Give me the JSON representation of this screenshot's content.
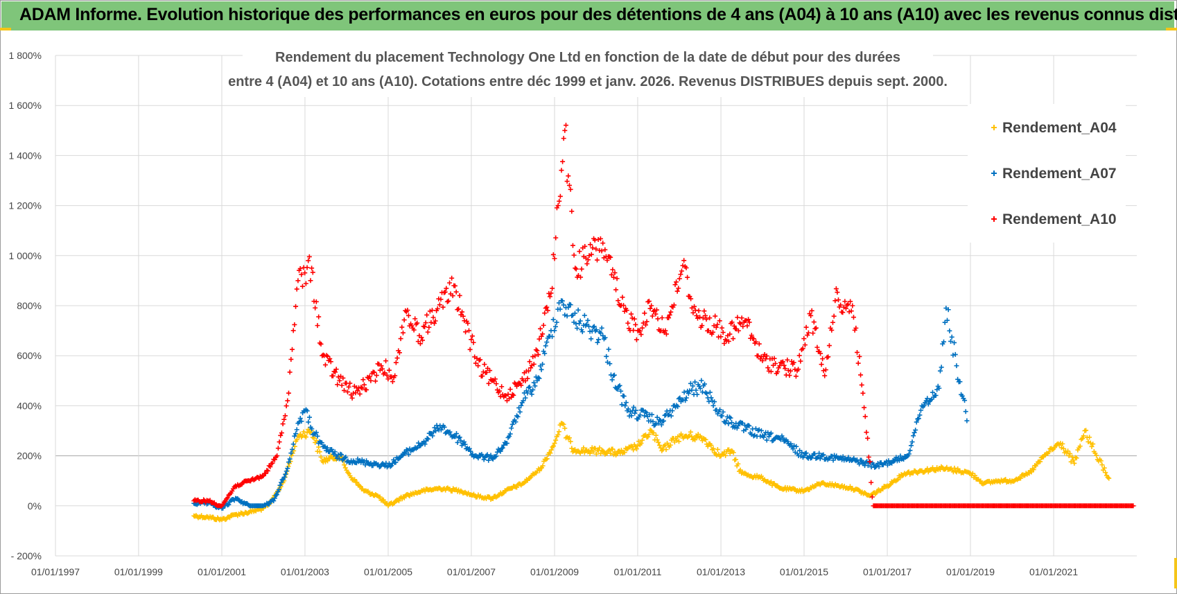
{
  "header": {
    "title": "ADAM Informe. Evolution historique des performances en euros pour des détentions de 4 ans (A04) à 10 ans (A10) avec les revenus connus distribués"
  },
  "colors": {
    "banner": "#7fc57a",
    "corner_accent": "#f5c518",
    "A04": "#ffc000",
    "A07": "#0070c0",
    "A10": "#ff0000",
    "gridline": "#d9d9d9"
  },
  "chart_data": {
    "type": "scatter",
    "title_line1": "Rendement du placement Technology One Ltd en fonction de la date de début pour des durées",
    "title_line2": "entre 4 (A04) et 10 ans (A10).  Cotations entre déc 1999 et janv. 2026.  Revenus DISTRIBUES depuis sept. 2000.",
    "xlabel": "",
    "ylabel": "",
    "x_ticks": [
      "01/01/1997",
      "01/01/1999",
      "01/01/2001",
      "01/01/2003",
      "01/01/2005",
      "01/01/2007",
      "01/01/2009",
      "01/01/2011",
      "01/01/2013",
      "01/01/2015",
      "01/01/2017",
      "01/01/2019",
      "01/01/2021"
    ],
    "y_ticks": [
      "1 800%",
      "1 600%",
      "1 400%",
      "1 200%",
      "1 000%",
      "800%",
      "600%",
      "400%",
      "200%",
      "0%",
      "- 200%"
    ],
    "xlim": [
      "1997-01-01",
      "2023-01-01"
    ],
    "ylim": [
      -200,
      1800
    ],
    "grid": true,
    "legend_position": "top-right",
    "marker": "+",
    "series": [
      {
        "name": "Rendement_A04",
        "color": "#ffc000",
        "points": [
          [
            "2000-05-01",
            -40
          ],
          [
            "2000-09-01",
            -45
          ],
          [
            "2001-01-01",
            -55
          ],
          [
            "2001-05-01",
            -35
          ],
          [
            "2001-09-01",
            -25
          ],
          [
            "2002-01-01",
            -10
          ],
          [
            "2002-03-01",
            10
          ],
          [
            "2002-07-01",
            100
          ],
          [
            "2002-11-01",
            280
          ],
          [
            "2003-03-01",
            300
          ],
          [
            "2003-06-01",
            180
          ],
          [
            "2003-11-01",
            200
          ],
          [
            "2004-02-01",
            120
          ],
          [
            "2004-06-01",
            60
          ],
          [
            "2004-10-01",
            40
          ],
          [
            "2005-01-01",
            0
          ],
          [
            "2005-06-01",
            40
          ],
          [
            "2005-11-01",
            60
          ],
          [
            "2006-04-01",
            70
          ],
          [
            "2006-10-01",
            60
          ],
          [
            "2007-02-01",
            40
          ],
          [
            "2007-07-01",
            30
          ],
          [
            "2007-11-01",
            60
          ],
          [
            "2008-04-01",
            90
          ],
          [
            "2008-09-01",
            150
          ],
          [
            "2009-01-01",
            250
          ],
          [
            "2009-03-01",
            330
          ],
          [
            "2009-06-01",
            230
          ],
          [
            "2009-10-01",
            220
          ],
          [
            "2010-03-01",
            220
          ],
          [
            "2010-08-01",
            210
          ],
          [
            "2011-01-01",
            240
          ],
          [
            "2011-05-01",
            300
          ],
          [
            "2011-08-01",
            220
          ],
          [
            "2011-12-01",
            270
          ],
          [
            "2012-04-01",
            280
          ],
          [
            "2012-08-01",
            270
          ],
          [
            "2013-01-01",
            200
          ],
          [
            "2013-04-01",
            220
          ],
          [
            "2013-07-01",
            130
          ],
          [
            "2014-01-01",
            110
          ],
          [
            "2014-06-01",
            70
          ],
          [
            "2015-01-01",
            60
          ],
          [
            "2015-06-01",
            90
          ],
          [
            "2015-11-01",
            80
          ],
          [
            "2016-03-01",
            70
          ],
          [
            "2016-08-01",
            40
          ],
          [
            "2017-01-01",
            80
          ],
          [
            "2017-06-01",
            130
          ],
          [
            "2017-11-01",
            140
          ],
          [
            "2018-04-01",
            150
          ],
          [
            "2018-10-01",
            140
          ],
          [
            "2019-01-01",
            130
          ],
          [
            "2019-05-01",
            90
          ],
          [
            "2019-09-01",
            100
          ],
          [
            "2020-01-01",
            100
          ],
          [
            "2020-06-01",
            130
          ],
          [
            "2020-11-01",
            210
          ],
          [
            "2021-03-01",
            250
          ],
          [
            "2021-07-01",
            170
          ],
          [
            "2021-10-01",
            300
          ],
          [
            "2022-01-01",
            210
          ],
          [
            "2022-05-01",
            110
          ]
        ]
      },
      {
        "name": "Rendement_A07",
        "color": "#0070c0",
        "points": [
          [
            "2000-05-01",
            10
          ],
          [
            "2000-09-01",
            10
          ],
          [
            "2001-01-01",
            -10
          ],
          [
            "2001-05-01",
            30
          ],
          [
            "2001-09-01",
            0
          ],
          [
            "2002-01-01",
            0
          ],
          [
            "2002-04-01",
            20
          ],
          [
            "2002-08-01",
            150
          ],
          [
            "2002-11-01",
            330
          ],
          [
            "2003-01-01",
            380
          ],
          [
            "2003-05-01",
            250
          ],
          [
            "2003-10-01",
            200
          ],
          [
            "2004-03-01",
            180
          ],
          [
            "2004-08-01",
            170
          ],
          [
            "2005-01-01",
            160
          ],
          [
            "2005-06-01",
            210
          ],
          [
            "2005-11-01",
            250
          ],
          [
            "2006-04-01",
            320
          ],
          [
            "2006-10-01",
            260
          ],
          [
            "2007-02-01",
            200
          ],
          [
            "2007-07-01",
            190
          ],
          [
            "2007-11-01",
            250
          ],
          [
            "2008-04-01",
            420
          ],
          [
            "2008-08-01",
            500
          ],
          [
            "2008-12-01",
            700
          ],
          [
            "2009-03-01",
            820
          ],
          [
            "2009-06-01",
            760
          ],
          [
            "2009-10-01",
            720
          ],
          [
            "2010-03-01",
            680
          ],
          [
            "2010-06-01",
            520
          ],
          [
            "2010-10-01",
            380
          ],
          [
            "2011-03-01",
            360
          ],
          [
            "2011-07-01",
            330
          ],
          [
            "2011-11-01",
            380
          ],
          [
            "2012-04-01",
            460
          ],
          [
            "2012-08-01",
            480
          ],
          [
            "2013-01-01",
            360
          ],
          [
            "2013-06-01",
            320
          ],
          [
            "2014-01-01",
            280
          ],
          [
            "2014-06-01",
            270
          ],
          [
            "2015-01-01",
            200
          ],
          [
            "2015-06-01",
            200
          ],
          [
            "2015-11-01",
            190
          ],
          [
            "2016-04-01",
            180
          ],
          [
            "2016-10-01",
            160
          ],
          [
            "2017-03-01",
            180
          ],
          [
            "2017-07-01",
            200
          ],
          [
            "2017-11-01",
            400
          ],
          [
            "2018-04-01",
            470
          ],
          [
            "2018-06-01",
            790
          ],
          [
            "2018-09-01",
            560
          ],
          [
            "2018-12-01",
            340
          ]
        ]
      },
      {
        "name": "Rendement_A10",
        "color": "#ff0000",
        "points": [
          [
            "2000-05-01",
            20
          ],
          [
            "2000-09-01",
            20
          ],
          [
            "2001-01-01",
            0
          ],
          [
            "2001-05-01",
            80
          ],
          [
            "2001-09-01",
            100
          ],
          [
            "2002-01-01",
            120
          ],
          [
            "2002-05-01",
            200
          ],
          [
            "2002-08-01",
            420
          ],
          [
            "2002-11-01",
            900
          ],
          [
            "2003-03-01",
            950
          ],
          [
            "2003-06-01",
            600
          ],
          [
            "2003-11-01",
            500
          ],
          [
            "2004-03-01",
            450
          ],
          [
            "2004-08-01",
            500
          ],
          [
            "2004-11-01",
            560
          ],
          [
            "2005-03-01",
            520
          ],
          [
            "2005-06-01",
            780
          ],
          [
            "2005-10-01",
            680
          ],
          [
            "2006-03-01",
            780
          ],
          [
            "2006-08-01",
            880
          ],
          [
            "2006-11-01",
            740
          ],
          [
            "2007-03-01",
            560
          ],
          [
            "2007-07-01",
            500
          ],
          [
            "2007-11-01",
            440
          ],
          [
            "2008-04-01",
            500
          ],
          [
            "2008-08-01",
            620
          ],
          [
            "2008-12-01",
            850
          ],
          [
            "2009-02-01",
            1200
          ],
          [
            "2009-04-01",
            1500
          ],
          [
            "2009-07-01",
            950
          ],
          [
            "2009-11-01",
            1000
          ],
          [
            "2010-03-01",
            1050
          ],
          [
            "2010-08-01",
            800
          ],
          [
            "2011-01-01",
            700
          ],
          [
            "2011-05-01",
            800
          ],
          [
            "2011-09-01",
            700
          ],
          [
            "2012-02-01",
            960
          ],
          [
            "2012-06-01",
            760
          ],
          [
            "2012-11-01",
            720
          ],
          [
            "2013-03-01",
            680
          ],
          [
            "2013-08-01",
            740
          ],
          [
            "2014-01-01",
            580
          ],
          [
            "2014-06-01",
            560
          ],
          [
            "2014-11-01",
            540
          ],
          [
            "2015-03-01",
            760
          ],
          [
            "2015-07-01",
            520
          ],
          [
            "2015-10-01",
            820
          ],
          [
            "2016-03-01",
            800
          ],
          [
            "2016-06-01",
            450
          ],
          [
            "2016-09-01",
            0
          ],
          [
            "2017-06-01",
            0
          ],
          [
            "2018-06-01",
            0
          ],
          [
            "2019-06-01",
            0
          ],
          [
            "2020-06-01",
            0
          ],
          [
            "2021-06-01",
            0
          ],
          [
            "2022-12-01",
            0
          ]
        ]
      }
    ]
  }
}
